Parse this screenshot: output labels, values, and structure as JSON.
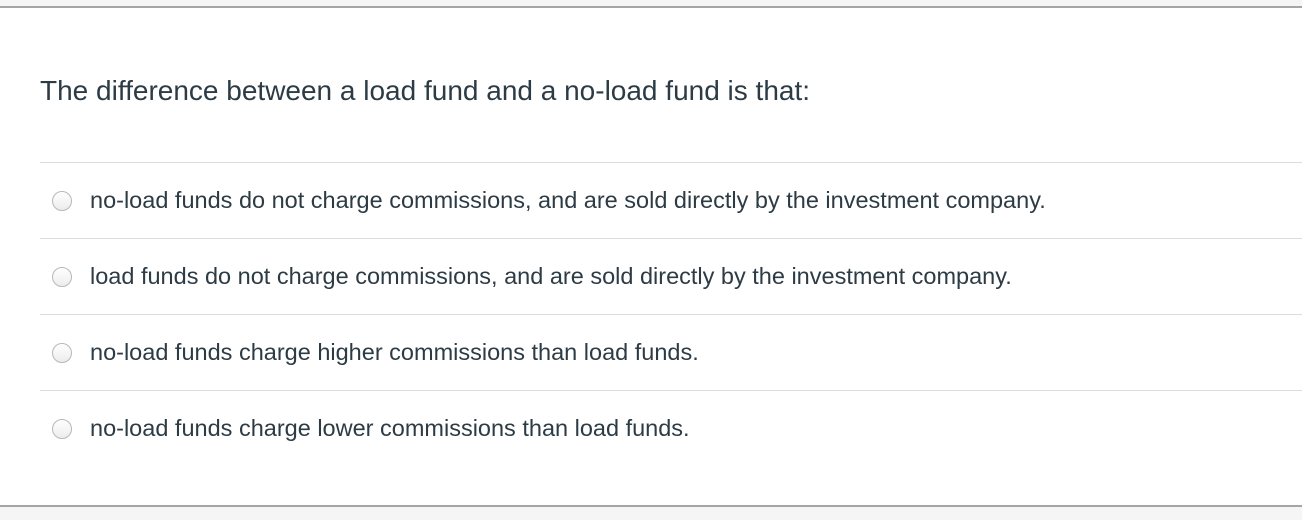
{
  "question": "The difference between a load fund and a no-load fund is that:",
  "answers": [
    {
      "label": "no-load funds do not charge commissions, and are sold directly by the investment company.",
      "selected": false
    },
    {
      "label": "load funds do not charge commissions, and are sold directly by the investment company.",
      "selected": false
    },
    {
      "label": "no-load funds charge higher commissions than load funds.",
      "selected": false
    },
    {
      "label": "no-load funds charge lower commissions than load funds.",
      "selected": false
    }
  ]
}
